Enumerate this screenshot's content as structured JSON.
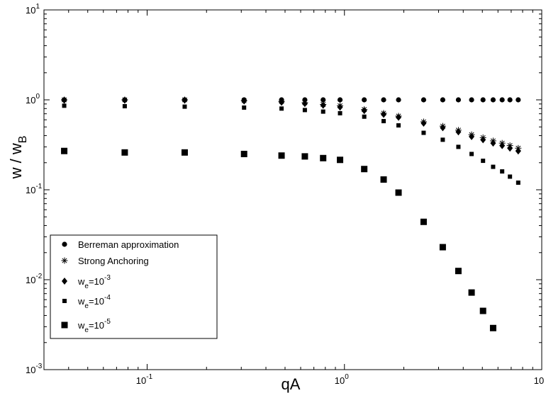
{
  "chart_data": {
    "type": "scatter",
    "xscale": "log",
    "yscale": "log",
    "xlim": [
      0.03,
      10
    ],
    "ylim": [
      0.001,
      10
    ],
    "xlabel": "qA",
    "ylabel": {
      "base": "w / w",
      "sub": "B"
    },
    "x_ticks": [
      {
        "value": 0.1,
        "base": "10",
        "exp": "-1"
      },
      {
        "value": 1,
        "base": "10",
        "exp": "0"
      },
      {
        "value": 10,
        "base": "10",
        "exp": ""
      }
    ],
    "y_ticks": [
      {
        "value": 0.001,
        "base": "10",
        "exp": "-3"
      },
      {
        "value": 0.01,
        "base": "10",
        "exp": "-2"
      },
      {
        "value": 0.1,
        "base": "10",
        "exp": "-1"
      },
      {
        "value": 1,
        "base": "10",
        "exp": "0"
      },
      {
        "value": 10,
        "base": "10",
        "exp": "1"
      }
    ],
    "grid": false,
    "legend_position": "bottom-left",
    "series": [
      {
        "name": "Berreman approximation",
        "label": {
          "text": "Berreman approximation"
        },
        "marker": "circle",
        "x": [
          0.038,
          0.077,
          0.155,
          0.31,
          0.48,
          0.63,
          0.78,
          0.95,
          1.26,
          1.58,
          1.88,
          2.52,
          3.15,
          3.78,
          4.41,
          5.04,
          5.67,
          6.3,
          6.9,
          7.6
        ],
        "y": [
          1.0,
          1.0,
          1.0,
          1.0,
          1.0,
          1.0,
          1.0,
          1.0,
          1.0,
          1.0,
          1.0,
          1.0,
          1.0,
          1.0,
          1.0,
          1.0,
          1.0,
          1.0,
          1.0,
          1.0
        ]
      },
      {
        "name": "Strong Anchoring",
        "label": {
          "text": "Strong Anchoring"
        },
        "marker": "asterisk",
        "x": [
          0.038,
          0.077,
          0.155,
          0.31,
          0.48,
          0.63,
          0.78,
          0.95,
          1.26,
          1.58,
          1.88,
          2.52,
          3.15,
          3.78,
          4.41,
          5.04,
          5.67,
          6.3,
          6.9,
          7.6
        ],
        "y": [
          1.0,
          1.0,
          1.0,
          0.98,
          0.96,
          0.93,
          0.89,
          0.86,
          0.78,
          0.71,
          0.66,
          0.57,
          0.51,
          0.46,
          0.41,
          0.38,
          0.35,
          0.33,
          0.31,
          0.29
        ]
      },
      {
        "name": "w_e=10^-3",
        "label": {
          "base": "w",
          "sub": "e",
          "mid": "=10",
          "sup": "-3"
        },
        "marker": "diamond",
        "x": [
          0.038,
          0.077,
          0.155,
          0.31,
          0.48,
          0.63,
          0.78,
          0.95,
          1.26,
          1.58,
          1.88,
          2.52,
          3.15,
          3.78,
          4.41,
          5.04,
          5.67,
          6.3,
          6.9,
          7.6
        ],
        "y": [
          0.99,
          0.99,
          0.99,
          0.97,
          0.94,
          0.91,
          0.87,
          0.83,
          0.76,
          0.69,
          0.64,
          0.55,
          0.49,
          0.44,
          0.39,
          0.36,
          0.33,
          0.31,
          0.29,
          0.27
        ]
      },
      {
        "name": "w_e=10^-4",
        "label": {
          "base": "w",
          "sub": "e",
          "mid": "=10",
          "sup": "-4"
        },
        "marker": "square-small",
        "x": [
          0.038,
          0.077,
          0.155,
          0.31,
          0.48,
          0.63,
          0.78,
          0.95,
          1.26,
          1.58,
          1.88,
          2.52,
          3.15,
          3.78,
          4.41,
          5.04,
          5.67,
          6.3,
          6.9,
          7.6
        ],
        "y": [
          0.86,
          0.85,
          0.84,
          0.82,
          0.8,
          0.77,
          0.74,
          0.71,
          0.65,
          0.58,
          0.52,
          0.43,
          0.36,
          0.3,
          0.25,
          0.21,
          0.18,
          0.16,
          0.14,
          0.12
        ]
      },
      {
        "name": "w_e=10^-5",
        "label": {
          "base": "w",
          "sub": "e",
          "mid": "=10",
          "sup": "-5"
        },
        "marker": "square-large",
        "x": [
          0.038,
          0.077,
          0.155,
          0.31,
          0.48,
          0.63,
          0.78,
          0.95,
          1.26,
          1.58,
          1.88,
          2.52,
          3.15,
          3.78,
          4.41,
          5.04,
          5.67
        ],
        "y": [
          0.27,
          0.26,
          0.26,
          0.25,
          0.24,
          0.235,
          0.225,
          0.215,
          0.17,
          0.13,
          0.093,
          0.044,
          0.023,
          0.0125,
          0.0072,
          0.0045,
          0.0029
        ]
      }
    ]
  }
}
